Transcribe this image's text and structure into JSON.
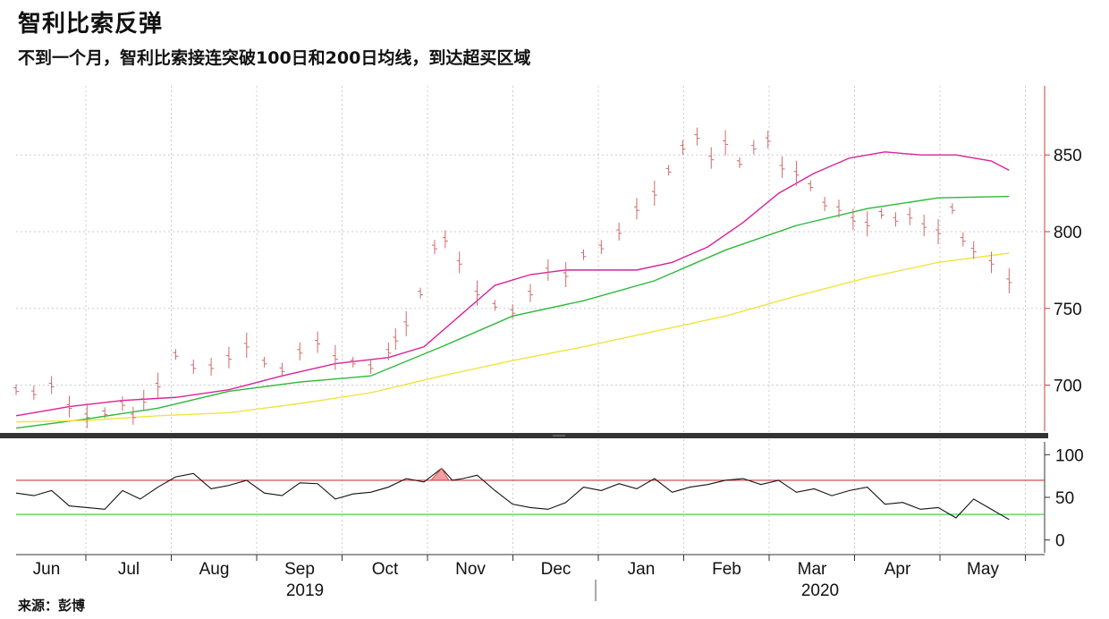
{
  "header": {
    "title": "智利比索反弹",
    "subtitle": "不到一个月，智利比索接连突破100日和200日均线，到达超买区域"
  },
  "footer": {
    "source": "来源：彭博"
  },
  "colors": {
    "price_bars": "#d06a6a",
    "ma_pink": "#d6239a",
    "ma_green": "#2db83a",
    "ma_yellow": "#f0e440",
    "rsi_line": "#111111",
    "rsi_upper": "#d03a3a",
    "rsi_lower": "#33cc33",
    "divider": "#333333"
  },
  "chart_data": [
    {
      "type": "line",
      "panel": "price",
      "x_months": [
        "Jun",
        "Jul",
        "Aug",
        "Sep",
        "Oct",
        "Nov",
        "Dec",
        "Jan",
        "Feb",
        "Mar",
        "Apr",
        "May"
      ],
      "x_years": [
        "2019",
        "2020"
      ],
      "yticks": [
        700,
        750,
        800,
        850
      ],
      "ylim": [
        670,
        895
      ],
      "grid": true,
      "series": [
        {
          "name": "",
          "kind": "ohlc-bars",
          "x": [
            0,
            5,
            10,
            15,
            20,
            25,
            30,
            33,
            36,
            40,
            45,
            50,
            55,
            60,
            65,
            70,
            75,
            80,
            85,
            90,
            95,
            100,
            105,
            107,
            110,
            114,
            118,
            121,
            125,
            130,
            135,
            140,
            145,
            150,
            155,
            160,
            165,
            170,
            175,
            180,
            184,
            188,
            192,
            196,
            200,
            204,
            208,
            212,
            216,
            220,
            224,
            228,
            232,
            236,
            240,
            244,
            248,
            252,
            256,
            260,
            264,
            267,
            270,
            275,
            280
          ],
          "y": [
            697,
            695,
            700,
            686,
            680,
            682,
            688,
            680,
            690,
            700,
            720,
            712,
            712,
            718,
            726,
            715,
            710,
            722,
            728,
            718,
            715,
            712,
            722,
            730,
            740,
            760,
            790,
            795,
            780,
            760,
            752,
            748,
            760,
            775,
            772,
            785,
            790,
            800,
            815,
            825,
            840,
            855,
            862,
            848,
            858,
            845,
            855,
            860,
            842,
            838,
            830,
            818,
            815,
            808,
            805,
            812,
            808,
            810,
            804,
            800,
            815,
            795,
            788,
            780,
            768
          ]
        },
        {
          "name": "",
          "kind": "ma",
          "color": "ma_pink",
          "x": [
            0,
            15,
            30,
            45,
            60,
            75,
            90,
            105,
            115,
            125,
            135,
            145,
            155,
            165,
            175,
            185,
            195,
            205,
            215,
            225,
            235,
            245,
            255,
            265,
            275,
            280
          ],
          "y": [
            680,
            686,
            690,
            692,
            697,
            706,
            714,
            718,
            725,
            745,
            765,
            772,
            775,
            775,
            775,
            780,
            790,
            806,
            825,
            838,
            848,
            852,
            850,
            850,
            846,
            840
          ]
        },
        {
          "name": "",
          "kind": "ma",
          "color": "ma_green",
          "x": [
            0,
            20,
            40,
            60,
            80,
            100,
            120,
            140,
            160,
            180,
            200,
            220,
            240,
            260,
            280
          ],
          "y": [
            672,
            678,
            685,
            696,
            702,
            706,
            725,
            745,
            755,
            768,
            788,
            804,
            815,
            822,
            823
          ]
        },
        {
          "name": "",
          "kind": "ma",
          "color": "ma_yellow",
          "x": [
            0,
            20,
            40,
            60,
            80,
            100,
            120,
            140,
            160,
            180,
            200,
            220,
            240,
            260,
            280
          ],
          "y": [
            676,
            677,
            680,
            682,
            688,
            695,
            706,
            716,
            725,
            735,
            745,
            758,
            770,
            780,
            786
          ]
        }
      ]
    },
    {
      "type": "line",
      "panel": "rsi",
      "yticks": [
        0,
        50,
        100
      ],
      "ylim": [
        -15,
        115
      ],
      "reference_lines": [
        70,
        30
      ],
      "series": [
        {
          "name": "",
          "x": [
            0,
            5,
            10,
            15,
            20,
            25,
            30,
            35,
            40,
            45,
            50,
            55,
            60,
            65,
            70,
            75,
            80,
            85,
            90,
            95,
            100,
            105,
            110,
            115,
            120,
            123,
            126,
            130,
            135,
            140,
            145,
            150,
            155,
            160,
            165,
            170,
            175,
            180,
            185,
            190,
            195,
            200,
            205,
            210,
            215,
            220,
            225,
            230,
            235,
            240,
            245,
            250,
            255,
            260,
            265,
            270,
            275,
            280
          ],
          "y": [
            55,
            52,
            58,
            40,
            38,
            36,
            58,
            48,
            62,
            74,
            78,
            60,
            64,
            70,
            55,
            52,
            67,
            66,
            48,
            54,
            56,
            62,
            72,
            68,
            84,
            70,
            72,
            76,
            58,
            42,
            38,
            36,
            44,
            62,
            58,
            66,
            60,
            72,
            56,
            62,
            65,
            70,
            72,
            65,
            70,
            56,
            60,
            52,
            58,
            62,
            42,
            44,
            36,
            38,
            26,
            48,
            36,
            24
          ]
        }
      ]
    }
  ]
}
